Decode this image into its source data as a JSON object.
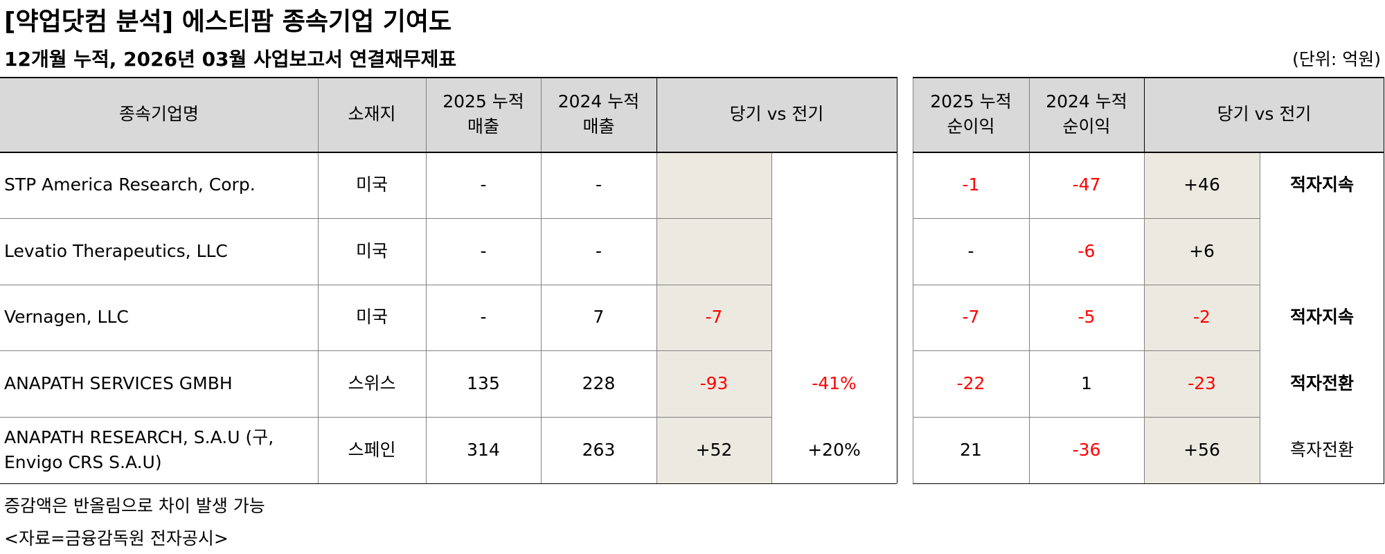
{
  "title": "[약업닷컴 분석] 에스티팜 종속기업 기여도",
  "subtitle": "12개월 누적, 2026년 03월 사업보고서 연결재무제표",
  "unit": "(단위: 억원)",
  "revenue_table": {
    "headers": [
      "종속기업명",
      "소재지",
      "2025 누적\n매출",
      "2024 누적\n매출",
      "당기 vs 전기"
    ],
    "rows": [
      {
        "name": "STP America Research, Corp.",
        "location": "미국",
        "rev_2025": "-",
        "rev_2024": "-",
        "diff": "",
        "pct": ""
      },
      {
        "name": "Levatio Therapeutics, LLC",
        "location": "미국",
        "rev_2025": "-",
        "rev_2024": "-",
        "diff": "",
        "pct": ""
      },
      {
        "name": "Vernagen, LLC",
        "location": "미국",
        "rev_2025": "-",
        "rev_2024": "7",
        "diff": "-7",
        "pct": ""
      },
      {
        "name": "ANAPATH SERVICES GMBH",
        "location": "스위스",
        "rev_2025": "135",
        "rev_2024": "228",
        "diff": "-93",
        "pct": "-41%"
      },
      {
        "name": "ANAPATH RESEARCH, S.A.U (구, Envigo CRS S.A.U)",
        "location": "스페인",
        "rev_2025": "314",
        "rev_2024": "263",
        "diff": "+52",
        "pct": "+20%"
      }
    ]
  },
  "income_table": {
    "headers": [
      "2025 누적\n순이익",
      "2024 누적\n순이익",
      "당기 vs 전기"
    ],
    "rows": [
      {
        "ni_2025": "-1",
        "ni_2024": "-47",
        "diff": "+46",
        "status": "적자지속"
      },
      {
        "ni_2025": "-",
        "ni_2024": "-6",
        "diff": "+6",
        "status": ""
      },
      {
        "ni_2025": "-7",
        "ni_2024": "-5",
        "diff": "-2",
        "status": "적자지속"
      },
      {
        "ni_2025": "-22",
        "ni_2024": "1",
        "diff": "-23",
        "status": "적자전환"
      },
      {
        "ni_2025": "21",
        "ni_2024": "-36",
        "diff": "+56",
        "status": "흑자전환"
      }
    ]
  },
  "footnotes": [
    "증감액은 반올림으로 차이 발생 가능",
    "<자료=금융감독원 전자공시>"
  ],
  "colors": {
    "header_bg": "#D9D9D9",
    "highlight_bg": "#ECEAE0",
    "negative": "#FF0000"
  }
}
